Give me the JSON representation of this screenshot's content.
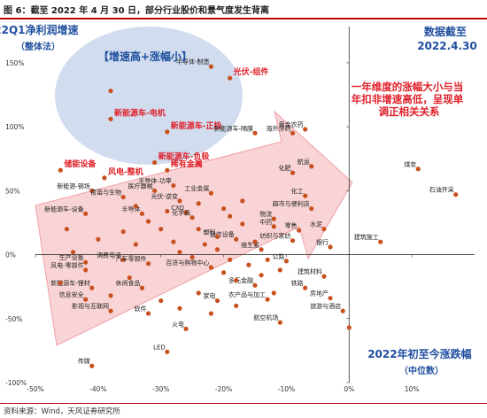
{
  "figure": {
    "title": "图 6：截至 2022 年 4 月 30 日，部分行业股价和景气度发生背离",
    "source": "资料来源：Wind，天风证券研究所",
    "annotation_top_left": [
      "22Q1净利润增速",
      "（整体法）"
    ],
    "annotation_top_right": [
      "数据截至",
      "2022.4.30"
    ],
    "annotation_ellipse": "【增速高+涨幅小】",
    "annotation_arrow": [
      "一年维度的涨幅大小与当",
      "年扣非增速高低，呈现单",
      "调正相关关系"
    ],
    "annotation_bottom_right": [
      "2022年初至今涨跌幅",
      "（中位数）"
    ]
  },
  "colors": {
    "point": "#c8501e",
    "highlight_text": "#e0202a",
    "blue_text": "#1f4e9e",
    "ellipse": "#c9d7ec",
    "arrow": "#f7c5c8"
  },
  "chart_data": {
    "type": "scatter",
    "xlim": [
      -0.5,
      0.2
    ],
    "ylim": [
      -1.0,
      1.7
    ],
    "x_ticks": [
      "-50%",
      "-40%",
      "-30%",
      "-20%",
      "-10%",
      "0%",
      "10%"
    ],
    "x_tick_values": [
      -0.5,
      -0.4,
      -0.3,
      -0.2,
      -0.1,
      0.0,
      0.1
    ],
    "y_ticks": [
      "150%",
      "100%",
      "50%",
      "0%",
      "-50%",
      "-100%"
    ],
    "y_tick_values": [
      1.5,
      1.0,
      0.5,
      0.0,
      -0.5,
      -1.0
    ],
    "points": [
      {
        "label": "半导体-制造",
        "x": -0.22,
        "y": 1.47,
        "highlight": false
      },
      {
        "label": "光伏-组件",
        "x": -0.19,
        "y": 1.38,
        "highlight": true
      },
      {
        "label": "",
        "x": -0.38,
        "y": 1.28,
        "highlight": false
      },
      {
        "label": "新能源车-电机",
        "x": -0.38,
        "y": 1.06,
        "highlight": true
      },
      {
        "label": "新能源车-正极",
        "x": -0.29,
        "y": 0.96,
        "highlight": true
      },
      {
        "label": "新能源车-负极",
        "x": -0.31,
        "y": 0.72,
        "highlight": true
      },
      {
        "label": "稀有金属",
        "x": -0.29,
        "y": 0.66,
        "highlight": true
      },
      {
        "label": "储能设备",
        "x": -0.46,
        "y": 0.66,
        "highlight": true
      },
      {
        "label": "风电-整机",
        "x": -0.39,
        "y": 0.6,
        "highlight": true
      },
      {
        "label": "新能源车-隔膜",
        "x": -0.15,
        "y": 0.95,
        "highlight": false
      },
      {
        "label": "海外涉药",
        "x": -0.09,
        "y": 0.95,
        "highlight": false
      },
      {
        "label": "黄金农药",
        "x": -0.07,
        "y": 0.98,
        "highlight": false
      },
      {
        "label": "航运",
        "x": -0.06,
        "y": 0.69,
        "highlight": false
      },
      {
        "label": "化肥",
        "x": -0.09,
        "y": 0.64,
        "highlight": false
      },
      {
        "label": "煤炭",
        "x": 0.11,
        "y": 0.67,
        "highlight": false
      },
      {
        "label": "石油开采",
        "x": 0.17,
        "y": 0.47,
        "highlight": false
      },
      {
        "label": "新能源-钢场",
        "x": -0.41,
        "y": 0.5,
        "highlight": false
      },
      {
        "label": "医疗器械",
        "x": -0.31,
        "y": 0.5,
        "highlight": false
      },
      {
        "label": "疫苗与生物",
        "x": -0.36,
        "y": 0.45,
        "highlight": false
      },
      {
        "label": "工业金属",
        "x": -0.22,
        "y": 0.48,
        "highlight": false
      },
      {
        "label": "光伏-逆变",
        "x": -0.27,
        "y": 0.42,
        "highlight": false
      },
      {
        "label": "半导体-功率",
        "x": -0.28,
        "y": 0.54,
        "highlight": false
      },
      {
        "label": "新能源车-设备",
        "x": -0.42,
        "y": 0.32,
        "highlight": false
      },
      {
        "label": "半导体",
        "x": -0.33,
        "y": 0.32,
        "highlight": false
      },
      {
        "label": "CXO",
        "x": -0.26,
        "y": 0.33,
        "highlight": false
      },
      {
        "label": "化学品",
        "x": -0.25,
        "y": 0.29,
        "highlight": false
      },
      {
        "label": "物流",
        "x": -0.12,
        "y": 0.28,
        "highlight": false
      },
      {
        "label": "超市与便利店",
        "x": -0.06,
        "y": 0.36,
        "highlight": false
      },
      {
        "label": "化工",
        "x": -0.07,
        "y": 0.46,
        "highlight": false
      },
      {
        "label": "中药",
        "x": -0.12,
        "y": 0.22,
        "highlight": false
      },
      {
        "label": "纺织与家纺",
        "x": -0.09,
        "y": 0.11,
        "highlight": false
      },
      {
        "label": "银行",
        "x": -0.03,
        "y": 0.06,
        "highlight": false
      },
      {
        "label": "建筑施工",
        "x": 0.05,
        "y": 0.1,
        "highlight": false
      },
      {
        "label": "水泥",
        "x": -0.04,
        "y": 0.2,
        "highlight": false
      },
      {
        "label": "零售",
        "x": -0.08,
        "y": 0.19,
        "highlight": false
      },
      {
        "label": "通信设备",
        "x": -0.18,
        "y": 0.12,
        "highlight": false
      },
      {
        "label": "塑料",
        "x": -0.21,
        "y": 0.14,
        "highlight": false
      },
      {
        "label": "维生素",
        "x": -0.14,
        "y": 0.04,
        "highlight": false
      },
      {
        "label": "公路",
        "x": -0.1,
        "y": -0.05,
        "highlight": false
      },
      {
        "label": "风电-零部件",
        "x": -0.42,
        "y": -0.12,
        "highlight": false
      },
      {
        "label": "生产设备",
        "x": -0.42,
        "y": -0.06,
        "highlight": false
      },
      {
        "label": "消费电子",
        "x": -0.36,
        "y": -0.04,
        "highlight": false
      },
      {
        "label": "汽车零部件",
        "x": -0.32,
        "y": -0.07,
        "highlight": false
      },
      {
        "label": "百货与购物中心",
        "x": -0.22,
        "y": -0.1,
        "highlight": false
      },
      {
        "label": "建筑材料",
        "x": -0.04,
        "y": -0.17,
        "highlight": false
      },
      {
        "label": "铁路",
        "x": -0.07,
        "y": -0.26,
        "highlight": false
      },
      {
        "label": "新能源车-锂材",
        "x": -0.41,
        "y": -0.26,
        "highlight": false
      },
      {
        "label": "休闲食品",
        "x": -0.33,
        "y": -0.26,
        "highlight": false
      },
      {
        "label": "信息安全",
        "x": -0.42,
        "y": -0.35,
        "highlight": false
      },
      {
        "label": "房地产",
        "x": -0.03,
        "y": -0.34,
        "highlight": false
      },
      {
        "label": "家电",
        "x": -0.21,
        "y": -0.36,
        "highlight": false
      },
      {
        "label": "多元金融",
        "x": -0.15,
        "y": -0.24,
        "highlight": false
      },
      {
        "label": "农产品与加工",
        "x": -0.13,
        "y": -0.35,
        "highlight": false
      },
      {
        "label": "旅游与酒店",
        "x": -0.01,
        "y": -0.44,
        "highlight": false
      },
      {
        "label": "影视与互联网",
        "x": -0.38,
        "y": -0.44,
        "highlight": false
      },
      {
        "label": "软件",
        "x": -0.32,
        "y": -0.46,
        "highlight": false
      },
      {
        "label": "航空机场",
        "x": -0.11,
        "y": -0.53,
        "highlight": false
      },
      {
        "label": "火电",
        "x": -0.26,
        "y": -0.58,
        "highlight": false
      },
      {
        "label": "LED",
        "x": -0.29,
        "y": -0.76,
        "highlight": false
      },
      {
        "label": "传媒",
        "x": -0.41,
        "y": -0.87,
        "highlight": false
      },
      {
        "label": "",
        "x": 0.0,
        "y": -0.57,
        "highlight": false
      },
      {
        "label": "",
        "x": -0.45,
        "y": 0.2,
        "highlight": false
      },
      {
        "label": "",
        "x": -0.4,
        "y": 0.12,
        "highlight": false
      },
      {
        "label": "",
        "x": -0.36,
        "y": 0.18,
        "highlight": false
      },
      {
        "label": "",
        "x": -0.34,
        "y": 0.08,
        "highlight": false
      },
      {
        "label": "",
        "x": -0.3,
        "y": 0.2,
        "highlight": false
      },
      {
        "label": "",
        "x": -0.28,
        "y": 0.1,
        "highlight": false
      },
      {
        "label": "",
        "x": -0.27,
        "y": 0.02,
        "highlight": false
      },
      {
        "label": "",
        "x": -0.25,
        "y": -0.02,
        "highlight": false
      },
      {
        "label": "",
        "x": -0.24,
        "y": 0.2,
        "highlight": false
      },
      {
        "label": "",
        "x": -0.23,
        "y": 0.08,
        "highlight": false
      },
      {
        "label": "",
        "x": -0.21,
        "y": 0.04,
        "highlight": false
      },
      {
        "label": "",
        "x": -0.2,
        "y": -0.14,
        "highlight": false
      },
      {
        "label": "",
        "x": -0.19,
        "y": 0.3,
        "highlight": false
      },
      {
        "label": "",
        "x": -0.18,
        "y": -0.2,
        "highlight": false
      },
      {
        "label": "",
        "x": -0.17,
        "y": 0.24,
        "highlight": false
      },
      {
        "label": "",
        "x": -0.16,
        "y": -0.08,
        "highlight": false
      },
      {
        "label": "",
        "x": -0.15,
        "y": 0.1,
        "highlight": false
      },
      {
        "label": "",
        "x": -0.14,
        "y": -0.16,
        "highlight": false
      },
      {
        "label": "",
        "x": -0.13,
        "y": -0.04,
        "highlight": false
      },
      {
        "label": "",
        "x": -0.12,
        "y": -0.3,
        "highlight": false
      },
      {
        "label": "",
        "x": -0.11,
        "y": -0.12,
        "highlight": false
      },
      {
        "label": "",
        "x": -0.35,
        "y": -0.18,
        "highlight": false
      },
      {
        "label": "",
        "x": -0.38,
        "y": -0.32,
        "highlight": false
      },
      {
        "label": "",
        "x": -0.3,
        "y": -0.36,
        "highlight": false
      },
      {
        "label": "",
        "x": -0.27,
        "y": -0.42,
        "highlight": false
      },
      {
        "label": "",
        "x": -0.24,
        "y": -0.3,
        "highlight": false
      },
      {
        "label": "",
        "x": -0.22,
        "y": -0.46,
        "highlight": false
      },
      {
        "label": "",
        "x": -0.18,
        "y": -0.4,
        "highlight": false
      },
      {
        "label": "",
        "x": -0.34,
        "y": 0.38,
        "highlight": false
      },
      {
        "label": "",
        "x": -0.29,
        "y": 0.34,
        "highlight": false
      },
      {
        "label": "",
        "x": -0.24,
        "y": 0.4,
        "highlight": false
      },
      {
        "label": "",
        "x": -0.2,
        "y": 0.36,
        "highlight": false
      },
      {
        "label": "",
        "x": -0.17,
        "y": 0.42,
        "highlight": false
      },
      {
        "label": "",
        "x": -0.44,
        "y": 0.02,
        "highlight": false
      },
      {
        "label": "",
        "x": -0.46,
        "y": -0.22,
        "highlight": false
      },
      {
        "label": "",
        "x": -0.32,
        "y": 0.26,
        "highlight": false
      },
      {
        "label": "",
        "x": -0.19,
        "y": -0.04,
        "highlight": false
      }
    ]
  }
}
